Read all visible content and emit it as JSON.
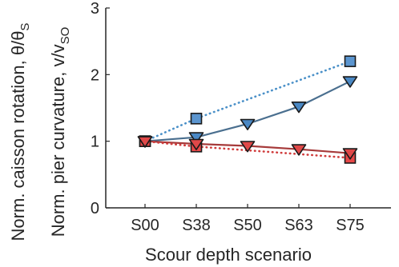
{
  "chart_data": {
    "type": "line",
    "categories": [
      "S00",
      "S38",
      "S50",
      "S63",
      "S75"
    ],
    "xlabel": "Scour depth scenario",
    "ylabel_lines": [
      "Norm. caisson rotation, θ/θ",
      "Norm. pier curvature, v/v"
    ],
    "ylabel_subscripts": [
      "S",
      "SO"
    ],
    "ylim": [
      0,
      3
    ],
    "yticks": [
      0,
      1,
      2,
      3
    ],
    "grid": false,
    "series": [
      {
        "marker": "triangle-down",
        "line": "solid",
        "color": "#4a6f8f",
        "fill": "#4a88c4",
        "points": [
          [
            0,
            1.0
          ],
          [
            1,
            1.06
          ],
          [
            2,
            1.26
          ],
          [
            3,
            1.52
          ],
          [
            4,
            1.9
          ]
        ]
      },
      {
        "marker": "square",
        "line": "dotted",
        "color": "#4a90c8",
        "fill": "#5b95cf",
        "points": [
          [
            0,
            1.0
          ],
          [
            1,
            1.34
          ],
          [
            4,
            2.2
          ]
        ]
      },
      {
        "marker": "triangle-down",
        "line": "solid",
        "color": "#a63a3a",
        "fill": "#e04848",
        "points": [
          [
            0,
            1.0
          ],
          [
            1,
            0.96
          ],
          [
            2,
            0.93
          ],
          [
            3,
            0.88
          ],
          [
            4,
            0.82
          ]
        ]
      },
      {
        "marker": "square",
        "line": "dotted",
        "color": "#d03c3c",
        "fill": "#e84848",
        "points": [
          [
            0,
            1.0
          ],
          [
            1,
            0.92
          ],
          [
            4,
            0.75
          ]
        ]
      }
    ]
  }
}
